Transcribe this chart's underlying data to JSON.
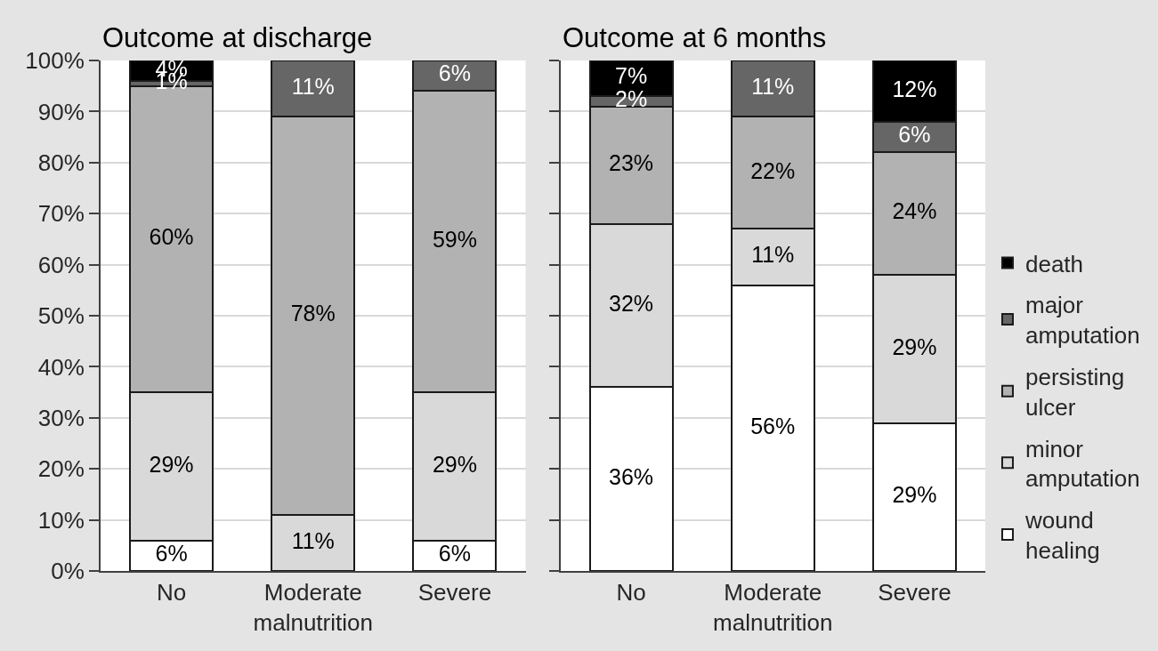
{
  "chart_data": [
    {
      "type": "bar",
      "title": "Outcome at discharge",
      "categories": [
        "No",
        "Moderate malnutrition",
        "Severe"
      ],
      "stacked": true,
      "series": [
        {
          "name": "wound healing",
          "color": "#ffffff",
          "values": [
            6,
            null,
            6
          ],
          "value_labels": [
            "6%",
            null,
            "6%"
          ]
        },
        {
          "name": "minor amputation",
          "color": "#d9d9d9",
          "values": [
            29,
            11,
            29
          ],
          "value_labels": [
            "29%",
            "11%",
            "29%"
          ]
        },
        {
          "name": "persisting ulcer",
          "color": "#b2b2b2",
          "values": [
            60,
            78,
            59
          ],
          "value_labels": [
            "60%",
            "78%",
            "59%"
          ]
        },
        {
          "name": "major amputation",
          "color": "#666666",
          "values": [
            1,
            11,
            6
          ],
          "value_labels": [
            "1%",
            "11%",
            "6%"
          ]
        },
        {
          "name": "death",
          "color": "#000000",
          "values": [
            4,
            null,
            null
          ],
          "value_labels": [
            "4%",
            null,
            null
          ]
        }
      ],
      "ylim": [
        0,
        100
      ],
      "yticks": [
        {
          "value": 0,
          "label": "0%"
        },
        {
          "value": 10,
          "label": "10%"
        },
        {
          "value": 20,
          "label": "20%"
        },
        {
          "value": 30,
          "label": "30%"
        },
        {
          "value": 40,
          "label": "40%"
        },
        {
          "value": 50,
          "label": "50%"
        },
        {
          "value": 60,
          "label": "60%"
        },
        {
          "value": 70,
          "label": "70%"
        },
        {
          "value": 80,
          "label": "80%"
        },
        {
          "value": 90,
          "label": "90%"
        },
        {
          "value": 100,
          "label": "100%"
        }
      ],
      "grid": "y",
      "legend": "right"
    },
    {
      "type": "bar",
      "title": "Outcome at 6 months",
      "categories": [
        "No",
        "Moderate malnutrition",
        "Severe"
      ],
      "stacked": true,
      "series": [
        {
          "color": "#ffffff",
          "values": [
            36,
            56,
            29
          ],
          "value_labels": [
            "36%",
            "56%",
            "29%"
          ]
        },
        {
          "color": "#d9d9d9",
          "values": [
            32,
            11,
            29
          ],
          "value_labels": [
            "32%",
            "11%",
            "29%"
          ]
        },
        {
          "color": "#b2b2b2",
          "values": [
            23,
            22,
            24
          ],
          "value_labels": [
            "23%",
            "22%",
            "24%"
          ]
        },
        {
          "color": "#666666",
          "values": [
            2,
            11,
            6
          ],
          "value_labels": [
            "2%",
            "11%",
            "6%"
          ]
        },
        {
          "color": "#000000",
          "values": [
            7,
            null,
            12
          ],
          "value_labels": [
            "7%",
            null,
            "12%"
          ]
        }
      ],
      "ylim": [
        0,
        100
      ],
      "yticks": [
        {
          "value": 0,
          "label": null
        },
        {
          "value": 10,
          "label": null
        },
        {
          "value": 20,
          "label": null
        },
        {
          "value": 30,
          "label": null
        },
        {
          "value": 40,
          "label": null
        },
        {
          "value": 50,
          "label": null
        },
        {
          "value": 60,
          "label": null
        },
        {
          "value": 70,
          "label": null
        },
        {
          "value": 80,
          "label": null
        },
        {
          "value": 90,
          "label": null
        },
        {
          "value": 100,
          "label": null
        }
      ],
      "grid": "y",
      "tick_labels": "x"
    }
  ]
}
